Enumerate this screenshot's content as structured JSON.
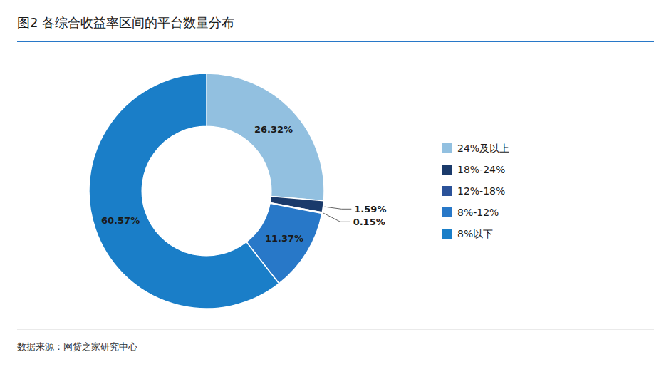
{
  "chart_data": {
    "type": "donut",
    "title": "图2  各综合收益率区间的平台数量分布",
    "categories": [
      "24%及以上",
      "18%-24%",
      "12%-18%",
      "8%-12%",
      "8%以下"
    ],
    "values": [
      26.32,
      1.59,
      0.15,
      11.37,
      60.57
    ],
    "value_labels": [
      "26.32%",
      "1.59%",
      "0.15%",
      "11.37%",
      "60.57%"
    ],
    "colors": [
      "#92c0e0",
      "#1a3a6b",
      "#2b5299",
      "#2878c8",
      "#1a7ec8"
    ],
    "data_labels": true,
    "legend": "right",
    "annotations": [
      "数据来源：网贷之家研究中心"
    ]
  }
}
